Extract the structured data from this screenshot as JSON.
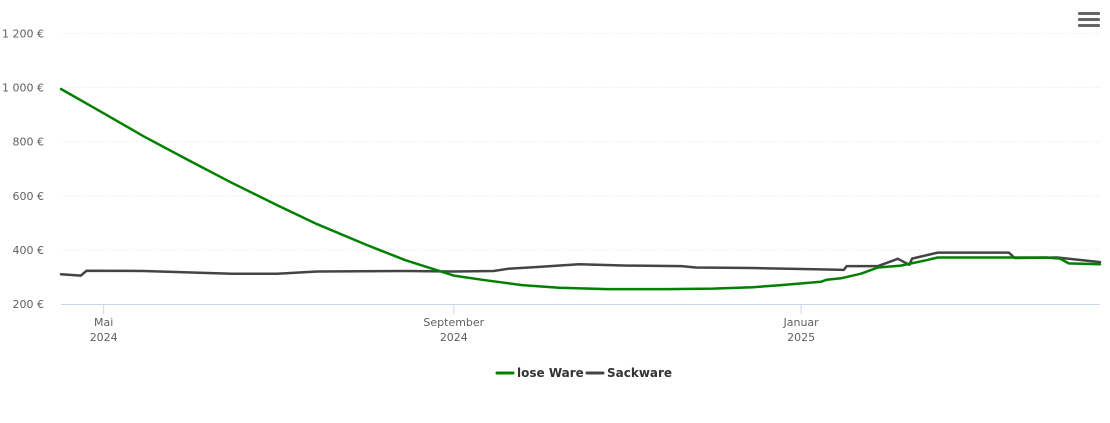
{
  "menu": {
    "icon": "hamburger-menu-icon"
  },
  "chart_data": {
    "type": "line",
    "title": "",
    "xlabel": "",
    "ylabel": "",
    "ylim": [
      200,
      1250
    ],
    "y_ticks": [
      200,
      400,
      600,
      800,
      1000,
      1200
    ],
    "y_tick_labels": [
      "200 €",
      "400 €",
      "600 €",
      "800 €",
      "1 000 €",
      "1 200 €"
    ],
    "x_range": [
      "2024-04-16",
      "2025-04-16"
    ],
    "x_ticks": [
      {
        "date": "2024-05-01",
        "month": "Mai",
        "year": "2024"
      },
      {
        "date": "2024-09-01",
        "month": "September",
        "year": "2024"
      },
      {
        "date": "2025-01-01",
        "month": "Januar",
        "year": "2025"
      }
    ],
    "grid": true,
    "legend_position": "bottom-center",
    "series": [
      {
        "name": "lose Ware",
        "color": "#008000",
        "points": [
          [
            "2024-04-16",
            995
          ],
          [
            "2024-05-01",
            905
          ],
          [
            "2024-05-15",
            820
          ],
          [
            "2024-06-01",
            725
          ],
          [
            "2024-06-15",
            648
          ],
          [
            "2024-07-01",
            565
          ],
          [
            "2024-07-15",
            495
          ],
          [
            "2024-08-01",
            420
          ],
          [
            "2024-08-15",
            362
          ],
          [
            "2024-09-01",
            305
          ],
          [
            "2024-09-12",
            288
          ],
          [
            "2024-09-25",
            270
          ],
          [
            "2024-10-08",
            260
          ],
          [
            "2024-10-25",
            255
          ],
          [
            "2024-11-15",
            255
          ],
          [
            "2024-12-01",
            257
          ],
          [
            "2024-12-15",
            262
          ],
          [
            "2024-12-25",
            270
          ],
          [
            "2025-01-08",
            282
          ],
          [
            "2025-01-10",
            290
          ],
          [
            "2025-01-15",
            295
          ],
          [
            "2025-01-22",
            312
          ],
          [
            "2025-01-28",
            335
          ],
          [
            "2025-02-05",
            342
          ],
          [
            "2025-02-14",
            362
          ],
          [
            "2025-02-18",
            372
          ],
          [
            "2025-02-25",
            372
          ],
          [
            "2025-03-18",
            372
          ],
          [
            "2025-03-28",
            372
          ],
          [
            "2025-04-02",
            368
          ],
          [
            "2025-04-05",
            350
          ],
          [
            "2025-04-16",
            347
          ]
        ]
      },
      {
        "name": "Sackware",
        "color": "#444444",
        "points": [
          [
            "2024-04-16",
            310
          ],
          [
            "2024-04-23",
            305
          ],
          [
            "2024-04-25",
            323
          ],
          [
            "2024-05-15",
            322
          ],
          [
            "2024-06-15",
            312
          ],
          [
            "2024-07-01",
            312
          ],
          [
            "2024-07-15",
            320
          ],
          [
            "2024-08-15",
            322
          ],
          [
            "2024-09-01",
            320
          ],
          [
            "2024-09-15",
            322
          ],
          [
            "2024-09-20",
            330
          ],
          [
            "2024-10-01",
            337
          ],
          [
            "2024-10-15",
            347
          ],
          [
            "2024-11-01",
            342
          ],
          [
            "2024-11-20",
            340
          ],
          [
            "2024-11-25",
            335
          ],
          [
            "2024-12-15",
            333
          ],
          [
            "2025-01-08",
            328
          ],
          [
            "2025-01-16",
            326
          ],
          [
            "2025-01-17",
            340
          ],
          [
            "2025-01-28",
            340
          ],
          [
            "2025-02-04",
            367
          ],
          [
            "2025-02-08",
            345
          ],
          [
            "2025-02-09",
            368
          ],
          [
            "2025-02-18",
            390
          ],
          [
            "2025-03-15",
            390
          ],
          [
            "2025-03-17",
            370
          ],
          [
            "2025-04-01",
            372
          ],
          [
            "2025-04-16",
            355
          ]
        ]
      }
    ]
  }
}
